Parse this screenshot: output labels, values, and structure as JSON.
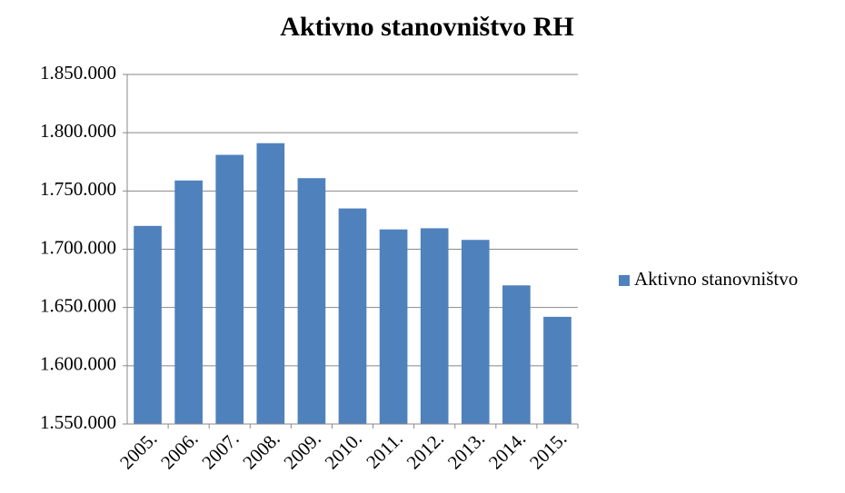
{
  "chart_data": {
    "type": "bar",
    "title": "Aktivno stanovništvo RH",
    "categories": [
      "2005.",
      "2006.",
      "2007.",
      "2008.",
      "2009.",
      "2010.",
      "2011.",
      "2012.",
      "2013.",
      "2014.",
      "2015."
    ],
    "series": [
      {
        "name": "Aktivno stanovništvo",
        "color": "#4f81bd",
        "values": [
          1720000,
          1759000,
          1781000,
          1791000,
          1761000,
          1735000,
          1717000,
          1718000,
          1708000,
          1669000,
          1642000
        ]
      }
    ],
    "ylim": [
      1550000,
      1850000
    ],
    "yticks": [
      {
        "value": 1550000,
        "label": "1.550.000"
      },
      {
        "value": 1600000,
        "label": "1.600.000"
      },
      {
        "value": 1650000,
        "label": "1.650.000"
      },
      {
        "value": 1700000,
        "label": "1.700.000"
      },
      {
        "value": 1750000,
        "label": "1.750.000"
      },
      {
        "value": 1800000,
        "label": "1.800.000"
      },
      {
        "value": 1850000,
        "label": "1.850.000"
      }
    ],
    "grid": true,
    "legend": "right"
  }
}
